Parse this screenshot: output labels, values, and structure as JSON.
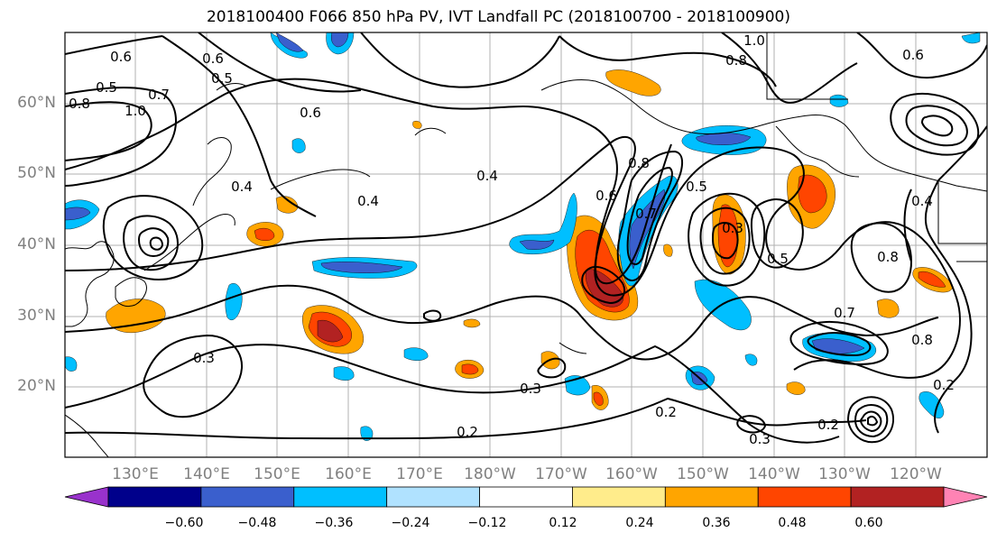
{
  "title": "2018100400 F066 850 hPa PV, IVT Landfall PC (2018100700 - 2018100900)",
  "map": {
    "lat_labels": [
      "60°N",
      "50°N",
      "40°N",
      "30°N",
      "20°N"
    ],
    "lon_labels": [
      "130°E",
      "140°E",
      "150°E",
      "160°E",
      "170°E",
      "180°W",
      "170°W",
      "160°W",
      "150°W",
      "140°W",
      "130°W",
      "120°W"
    ],
    "contour_labels": [
      "0.6",
      "0.5",
      "0.7",
      "0.8",
      "1.0",
      "0.6",
      "0.5",
      "0.6",
      "0.4",
      "0.4",
      "0.3",
      "0.2",
      "0.3",
      "0.2",
      "0.4",
      "0.8",
      "0.6",
      "0.7",
      "0.5",
      "0.3",
      "0.5",
      "0.8",
      "0.7",
      "0.8",
      "0.2",
      "0.3",
      "0.2",
      "0.4",
      "0.6",
      "0.8",
      "1.0"
    ]
  },
  "colorbar": {
    "colors": [
      "#9932cc",
      "#00008b",
      "#3a5fcd",
      "#00bfff",
      "#b0e2ff",
      "#ffffff",
      "#ffec8b",
      "#ffa500",
      "#ff4500",
      "#b22222",
      "#ff83b4"
    ],
    "ticks": [
      "−0.60",
      "−0.48",
      "−0.36",
      "−0.24",
      "−0.12",
      "0.12",
      "0.24",
      "0.36",
      "0.48",
      "0.60"
    ]
  }
}
